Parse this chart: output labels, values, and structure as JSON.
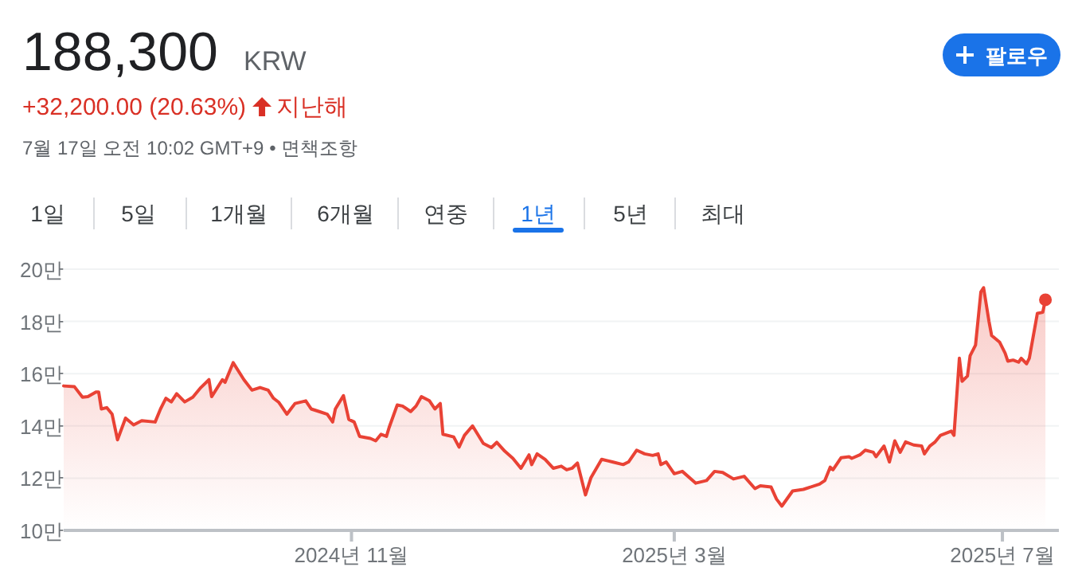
{
  "chart_data": {
    "type": "area",
    "title": "188,300",
    "annotations": [
      "KRW",
      "+32,200.00 (20.63%)",
      "지난해",
      "7월 17일 오전 10:02 GMT+9 • 면책조항",
      "팔로우",
      "1일",
      "5일",
      "1개월",
      "6개월",
      "연중",
      "1년",
      "5년",
      "최대"
    ],
    "series": [
      {
        "color": "#e94235",
        "x": [
          "2024-07-17",
          "2024-07-21",
          "2024-07-24",
          "2024-07-26",
          "2024-07-29",
          "2024-07-30",
          "2024-07-31",
          "2024-08-02",
          "2024-08-04",
          "2024-08-06",
          "2024-08-09",
          "2024-08-12",
          "2024-08-15",
          "2024-08-20",
          "2024-08-22",
          "2024-08-24",
          "2024-08-26",
          "2024-08-28",
          "2024-08-31",
          "2024-09-03",
          "2024-09-06",
          "2024-09-09",
          "2024-09-10",
          "2024-09-14",
          "2024-09-15",
          "2024-09-18",
          "2024-09-22",
          "2024-09-25",
          "2024-09-28",
          "2024-10-01",
          "2024-10-03",
          "2024-10-05",
          "2024-10-08",
          "2024-10-11",
          "2024-10-15",
          "2024-10-17",
          "2024-10-20",
          "2024-10-23",
          "2024-10-25",
          "2024-10-26",
          "2024-10-29",
          "2024-10-31",
          "2024-11-02",
          "2024-11-04",
          "2024-11-08",
          "2024-11-10",
          "2024-11-12",
          "2024-11-14",
          "2024-11-15",
          "2024-11-18",
          "2024-11-20",
          "2024-11-23",
          "2024-11-25",
          "2024-11-27",
          "2024-11-30",
          "2024-12-02",
          "2024-12-04",
          "2024-12-05",
          "2024-12-09",
          "2024-12-11",
          "2024-12-13",
          "2024-12-16",
          "2024-12-20",
          "2024-12-23",
          "2024-12-25",
          "2024-12-28",
          "2024-12-31",
          "2025-01-03",
          "2025-01-06",
          "2025-01-07",
          "2025-01-09",
          "2025-01-12",
          "2025-01-15",
          "2025-01-18",
          "2025-01-20",
          "2025-01-22",
          "2025-01-24",
          "2025-01-27",
          "2025-01-29",
          "2025-02-02",
          "2025-02-06",
          "2025-02-10",
          "2025-02-12",
          "2025-02-15",
          "2025-02-18",
          "2025-02-21",
          "2025-02-23",
          "2025-02-24",
          "2025-02-26",
          "2025-03-01",
          "2025-03-04",
          "2025-03-09",
          "2025-03-13",
          "2025-03-16",
          "2025-03-19",
          "2025-03-23",
          "2025-03-27",
          "2025-03-31",
          "2025-04-02",
          "2025-04-06",
          "2025-04-08",
          "2025-04-10",
          "2025-04-14",
          "2025-04-18",
          "2025-04-24",
          "2025-04-26",
          "2025-04-28",
          "2025-04-29",
          "2025-05-02",
          "2025-05-05",
          "2025-05-06",
          "2025-05-09",
          "2025-05-11",
          "2025-05-14",
          "2025-05-15",
          "2025-05-18",
          "2025-05-20",
          "2025-05-22",
          "2025-05-24",
          "2025-05-26",
          "2025-05-29",
          "2025-06-01",
          "2025-06-02",
          "2025-06-04",
          "2025-06-06",
          "2025-06-08",
          "2025-06-12",
          "2025-06-13",
          "2025-06-15",
          "2025-06-16",
          "2025-06-18",
          "2025-06-19",
          "2025-06-21",
          "2025-06-23",
          "2025-06-24",
          "2025-06-26",
          "2025-06-27",
          "2025-06-30",
          "2025-07-02",
          "2025-07-03",
          "2025-07-05",
          "2025-07-07",
          "2025-07-08",
          "2025-07-10",
          "2025-07-11",
          "2025-07-14",
          "2025-07-16",
          "2025-07-17"
        ],
        "values": [
          15.53,
          15.5,
          15.1,
          15.12,
          15.3,
          15.3,
          14.65,
          14.7,
          14.45,
          13.47,
          14.3,
          14.04,
          14.2,
          14.15,
          14.65,
          15.06,
          14.92,
          15.23,
          14.92,
          15.1,
          15.47,
          15.77,
          15.12,
          15.77,
          15.67,
          16.42,
          15.77,
          15.37,
          15.47,
          15.37,
          15.06,
          14.9,
          14.45,
          14.86,
          14.96,
          14.65,
          14.55,
          14.45,
          14.15,
          14.65,
          15.16,
          14.25,
          14.15,
          13.6,
          13.52,
          13.43,
          13.68,
          13.6,
          13.94,
          14.8,
          14.76,
          14.55,
          14.76,
          15.12,
          14.96,
          14.65,
          14.86,
          13.68,
          13.58,
          13.19,
          13.64,
          14.0,
          13.33,
          13.17,
          13.37,
          13.03,
          12.76,
          12.38,
          12.89,
          12.52,
          12.93,
          12.72,
          12.38,
          12.46,
          12.32,
          12.38,
          12.58,
          11.36,
          12.01,
          12.72,
          12.62,
          12.52,
          12.62,
          13.07,
          12.93,
          12.87,
          12.93,
          12.52,
          12.62,
          12.17,
          12.26,
          11.81,
          11.91,
          12.26,
          12.22,
          11.97,
          12.07,
          11.6,
          11.71,
          11.66,
          11.2,
          10.93,
          11.51,
          11.57,
          11.77,
          11.91,
          12.42,
          12.32,
          12.78,
          12.82,
          12.76,
          12.89,
          13.07,
          12.99,
          12.82,
          13.23,
          12.62,
          13.43,
          12.99,
          13.39,
          13.27,
          13.23,
          12.93,
          13.23,
          13.39,
          13.64,
          13.8,
          13.64,
          16.59,
          15.71,
          15.91,
          16.69,
          17.09,
          19.13,
          19.29,
          18.01,
          17.46,
          17.2,
          16.79,
          16.48,
          16.52,
          16.44,
          16.59,
          16.38,
          16.59,
          18.31,
          18.35,
          18.83
        ]
      }
    ],
    "xlim": [
      "2024-07-17",
      "2025-07-22"
    ],
    "xticks": [
      {
        "value": "2024-11-01",
        "label": "2024년 11월"
      },
      {
        "value": "2025-03-01",
        "label": "2025년 3월"
      },
      {
        "value": "2025-07-01",
        "label": "2025년 7월"
      }
    ],
    "ylim": [
      10,
      20
    ],
    "yticks": [
      {
        "value": 10,
        "label": "10만"
      },
      {
        "value": 12,
        "label": "12만"
      },
      {
        "value": 14,
        "label": "14만"
      },
      {
        "value": 16,
        "label": "16만"
      },
      {
        "value": 18,
        "label": "18만"
      },
      {
        "value": 20,
        "label": "20만"
      }
    ],
    "grid": "y"
  }
}
